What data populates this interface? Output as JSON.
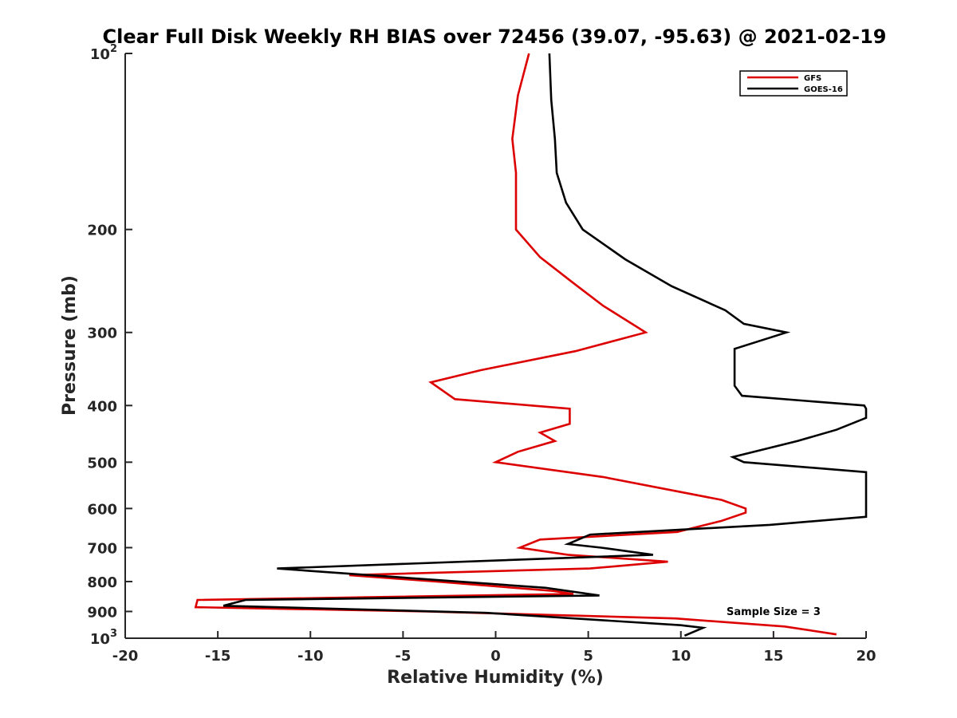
{
  "chart_data": {
    "type": "line",
    "title": "Clear Full Disk Weekly RH BIAS over 72456 (39.07, -95.63) @ 2021-02-19",
    "xlabel": "Relative Humidity (%)",
    "ylabel": "Pressure (mb)",
    "xlim": [
      -20,
      20
    ],
    "ylim": [
      100,
      1000
    ],
    "yscale": "log",
    "y_direction": "reversed",
    "x_ticks": [
      "-20",
      "-15",
      "-10",
      "-5",
      "0",
      "5",
      "10",
      "15",
      "20"
    ],
    "x_tick_values": [
      -20,
      -15,
      -10,
      -5,
      0,
      5,
      10,
      15,
      20
    ],
    "y_ticks": [
      {
        "value": 100,
        "base": "10",
        "exp": "2"
      },
      {
        "value": 200,
        "label": "200"
      },
      {
        "value": 300,
        "label": "300"
      },
      {
        "value": 400,
        "label": "400"
      },
      {
        "value": 500,
        "label": "500"
      },
      {
        "value": 600,
        "label": "600"
      },
      {
        "value": 700,
        "label": "700"
      },
      {
        "value": 800,
        "label": "800"
      },
      {
        "value": 900,
        "label": "900"
      },
      {
        "value": 1000,
        "base": "10",
        "exp": "3"
      }
    ],
    "legend": {
      "position": "top-right",
      "entries": [
        "GFS",
        "GOES-16"
      ]
    },
    "annotation": "Sample Size = 3",
    "series": [
      {
        "name": "GFS",
        "color": "#dd0000",
        "points": [
          [
            1.8,
            100
          ],
          [
            1.2,
            118
          ],
          [
            0.9,
            140
          ],
          [
            1.1,
            160
          ],
          [
            1.1,
            180
          ],
          [
            1.1,
            200
          ],
          [
            2.4,
            223
          ],
          [
            4.2,
            247
          ],
          [
            5.8,
            270
          ],
          [
            8.1,
            300
          ],
          [
            4.3,
            323
          ],
          [
            -0.8,
            348
          ],
          [
            -3.5,
            365
          ],
          [
            -2.2,
            390
          ],
          [
            4.0,
            405
          ],
          [
            4.0,
            430
          ],
          [
            2.4,
            445
          ],
          [
            3.2,
            460
          ],
          [
            1.2,
            480
          ],
          [
            0.0,
            500
          ],
          [
            5.8,
            530
          ],
          [
            12.2,
            580
          ],
          [
            13.5,
            600
          ],
          [
            13.5,
            610
          ],
          [
            12.2,
            630
          ],
          [
            9.8,
            658
          ],
          [
            2.4,
            678
          ],
          [
            1.3,
            700
          ],
          [
            3.9,
            720
          ],
          [
            9.3,
            740
          ],
          [
            5.1,
            760
          ],
          [
            -7.9,
            780
          ],
          [
            -3.2,
            800
          ],
          [
            3.1,
            830
          ],
          [
            4.2,
            840
          ],
          [
            -16.1,
            860
          ],
          [
            -16.2,
            885
          ],
          [
            -3.7,
            900
          ],
          [
            9.7,
            925
          ],
          [
            15.6,
            955
          ],
          [
            18.4,
            985
          ]
        ]
      },
      {
        "name": "GOES-16",
        "color": "#000000",
        "points": [
          [
            2.9,
            100
          ],
          [
            3.0,
            120
          ],
          [
            3.2,
            140
          ],
          [
            3.3,
            160
          ],
          [
            3.8,
            180
          ],
          [
            4.7,
            200
          ],
          [
            7.0,
            225
          ],
          [
            9.5,
            250
          ],
          [
            12.4,
            275
          ],
          [
            13.4,
            290
          ],
          [
            15.7,
            300
          ],
          [
            12.9,
            320
          ],
          [
            12.9,
            350
          ],
          [
            12.9,
            370
          ],
          [
            13.3,
            385
          ],
          [
            19.9,
            400
          ],
          [
            20.0,
            405
          ],
          [
            20.0,
            420
          ],
          [
            18.4,
            440
          ],
          [
            16.3,
            460
          ],
          [
            12.8,
            490
          ],
          [
            13.4,
            500
          ],
          [
            20.0,
            520
          ],
          [
            20.0,
            620
          ],
          [
            14.8,
            640
          ],
          [
            5.1,
            665
          ],
          [
            3.9,
            690
          ],
          [
            5.7,
            700
          ],
          [
            8.5,
            720
          ],
          [
            -11.8,
            760
          ],
          [
            2.7,
            820
          ],
          [
            5.6,
            845
          ],
          [
            -13.5,
            860
          ],
          [
            -14.7,
            880
          ],
          [
            -0.5,
            905
          ],
          [
            10.0,
            950
          ],
          [
            11.2,
            960
          ],
          [
            10.2,
            990
          ]
        ]
      }
    ]
  }
}
